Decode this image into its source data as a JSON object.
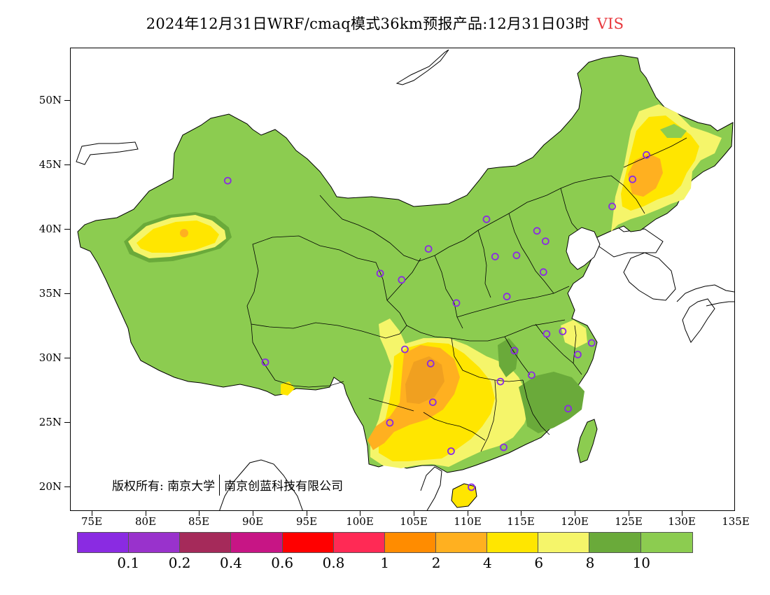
{
  "title": {
    "main": "2024年12月31日WRF/cmaq模式36km预报产品:12月31日03时",
    "variable": "VIS"
  },
  "axes": {
    "y_labels": [
      "50N",
      "45N",
      "40N",
      "35N",
      "30N",
      "25N",
      "20N"
    ],
    "x_labels": [
      "75E",
      "80E",
      "85E",
      "90E",
      "95E",
      "100E",
      "105E",
      "110E",
      "115E",
      "120E",
      "125E",
      "130E",
      "135E"
    ],
    "lon_range": [
      73,
      135
    ],
    "lat_range": [
      18,
      54
    ]
  },
  "copyright": {
    "prefix": "版权所有:",
    "org1": "南京大学",
    "org2": "南京创蓝科技有限公司"
  },
  "legend": {
    "colors": [
      "#8a2be2",
      "#9932cc",
      "#a52a5a",
      "#c71585",
      "#ff0000",
      "#ff2a55",
      "#ff8c00",
      "#ffb020",
      "#ffe600",
      "#f5f56a",
      "#6aaa3a",
      "#8ccc50"
    ],
    "labels": [
      "0.1",
      "0.2",
      "0.4",
      "0.6",
      "0.8",
      "1",
      "2",
      "4",
      "6",
      "8",
      "10"
    ]
  },
  "colors": {
    "land_high_vis": "#8ccc50",
    "forest_green": "#6aaa3a",
    "yellow": "#ffe600",
    "light_yellow": "#f5f56a",
    "orange": "#ffb020",
    "dark_orange": "#f0a020",
    "station_marker": "#8a2be2"
  },
  "stations": [
    {
      "lon": 87.6,
      "lat": 43.8
    },
    {
      "lon": 91.1,
      "lat": 29.7
    },
    {
      "lon": 101.8,
      "lat": 36.6
    },
    {
      "lon": 103.8,
      "lat": 36.1
    },
    {
      "lon": 106.3,
      "lat": 38.5
    },
    {
      "lon": 104.1,
      "lat": 30.7
    },
    {
      "lon": 106.5,
      "lat": 29.6
    },
    {
      "lon": 106.7,
      "lat": 26.6
    },
    {
      "lon": 102.7,
      "lat": 25.0
    },
    {
      "lon": 108.4,
      "lat": 22.8
    },
    {
      "lon": 110.3,
      "lat": 20.0
    },
    {
      "lon": 108.9,
      "lat": 34.3
    },
    {
      "lon": 111.7,
      "lat": 40.8
    },
    {
      "lon": 112.5,
      "lat": 37.9
    },
    {
      "lon": 114.5,
      "lat": 38.0
    },
    {
      "lon": 116.4,
      "lat": 39.9
    },
    {
      "lon": 117.2,
      "lat": 39.1
    },
    {
      "lon": 117.0,
      "lat": 36.7
    },
    {
      "lon": 113.6,
      "lat": 34.8
    },
    {
      "lon": 114.3,
      "lat": 30.6
    },
    {
      "lon": 113.0,
      "lat": 28.2
    },
    {
      "lon": 115.9,
      "lat": 28.7
    },
    {
      "lon": 117.3,
      "lat": 31.9
    },
    {
      "lon": 118.8,
      "lat": 32.1
    },
    {
      "lon": 120.2,
      "lat": 30.3
    },
    {
      "lon": 121.5,
      "lat": 31.2
    },
    {
      "lon": 119.3,
      "lat": 26.1
    },
    {
      "lon": 113.3,
      "lat": 23.1
    },
    {
      "lon": 123.4,
      "lat": 41.8
    },
    {
      "lon": 125.3,
      "lat": 43.9
    },
    {
      "lon": 126.6,
      "lat": 45.8
    }
  ]
}
